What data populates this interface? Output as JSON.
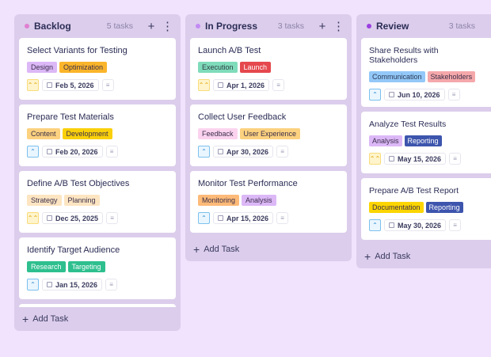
{
  "columns": [
    {
      "title": "Backlog",
      "count": "5 tasks",
      "dot": "#e07fd0",
      "add_label": "Add Task",
      "cards": [
        {
          "title": "Select Variants for Testing",
          "tags": [
            {
              "label": "Design",
              "bg": "#dcb8f7",
              "fg": "#3a2e4a"
            },
            {
              "label": "Optimization",
              "bg": "#fbb52b",
              "fg": "#3a2e4a"
            }
          ],
          "priority": "high",
          "date": "Feb 5, 2026"
        },
        {
          "title": "Prepare Test Materials",
          "tags": [
            {
              "label": "Content",
              "bg": "#fcd17f",
              "fg": "#3a2e4a"
            },
            {
              "label": "Development",
              "bg": "#fad00a",
              "fg": "#3a2e4a"
            }
          ],
          "priority": "medium",
          "date": "Feb 20, 2026"
        },
        {
          "title": "Define A/B Test Objectives",
          "tags": [
            {
              "label": "Strategy",
              "bg": "#fde5c2",
              "fg": "#3a2e4a"
            },
            {
              "label": "Planning",
              "bg": "#fde5c2",
              "fg": "#3a2e4a"
            }
          ],
          "priority": "high",
          "date": "Dec 25, 2025"
        },
        {
          "title": "Identify Target Audience",
          "tags": [
            {
              "label": "Research",
              "bg": "#2ebf8e",
              "fg": "#ffffff"
            },
            {
              "label": "Targeting",
              "bg": "#2ebf8e",
              "fg": "#ffffff"
            }
          ],
          "priority": "medium",
          "date": "Jan 15, 2026"
        },
        {
          "title": "",
          "tags": [],
          "priority": "",
          "date": ""
        }
      ]
    },
    {
      "title": "In Progress",
      "count": "3 tasks",
      "dot": "#c28af5",
      "add_label": "Add Task",
      "cards": [
        {
          "title": "Launch A/B Test",
          "tags": [
            {
              "label": "Execution",
              "bg": "#7fdcbb",
              "fg": "#2b3a40"
            },
            {
              "label": "Launch",
              "bg": "#e5484d",
              "fg": "#ffffff"
            }
          ],
          "priority": "high",
          "date": "Apr 1, 2026"
        },
        {
          "title": "Collect User Feedback",
          "tags": [
            {
              "label": "Feedback",
              "bg": "#fbd3ef",
              "fg": "#3a2e4a"
            },
            {
              "label": "User Experience",
              "bg": "#fcd17f",
              "fg": "#3a2e4a"
            }
          ],
          "priority": "medium",
          "date": "Apr 30, 2026"
        },
        {
          "title": "Monitor Test Performance",
          "tags": [
            {
              "label": "Monitoring",
              "bg": "#fdba78",
              "fg": "#3a2e4a"
            },
            {
              "label": "Analysis",
              "bg": "#dcb8f7",
              "fg": "#3a2e4a"
            }
          ],
          "priority": "medium",
          "date": "Apr 15, 2026"
        }
      ]
    },
    {
      "title": "Review",
      "count": "3 tasks",
      "dot": "#9b3fe0",
      "add_label": "Add Task",
      "cards": [
        {
          "title": "Share Results with Stakeholders",
          "tags": [
            {
              "label": "Communication",
              "bg": "#93c8f8",
              "fg": "#2b3a55"
            },
            {
              "label": "Stakeholders",
              "bg": "#f5a8aa",
              "fg": "#3a2e4a"
            }
          ],
          "priority": "medium",
          "date": "Jun 10, 2026"
        },
        {
          "title": "Analyze Test Results",
          "tags": [
            {
              "label": "Analysis",
              "bg": "#dcb8f7",
              "fg": "#3a2e4a"
            },
            {
              "label": "Reporting",
              "bg": "#3d55ad",
              "fg": "#ffffff"
            }
          ],
          "priority": "high",
          "date": "May 15, 2026"
        },
        {
          "title": "Prepare A/B Test Report",
          "tags": [
            {
              "label": "Documentation",
              "bg": "#fcd500",
              "fg": "#3a2e4a"
            },
            {
              "label": "Reporting",
              "bg": "#3d55ad",
              "fg": "#ffffff"
            }
          ],
          "priority": "medium",
          "date": "May 30, 2026"
        }
      ]
    }
  ]
}
